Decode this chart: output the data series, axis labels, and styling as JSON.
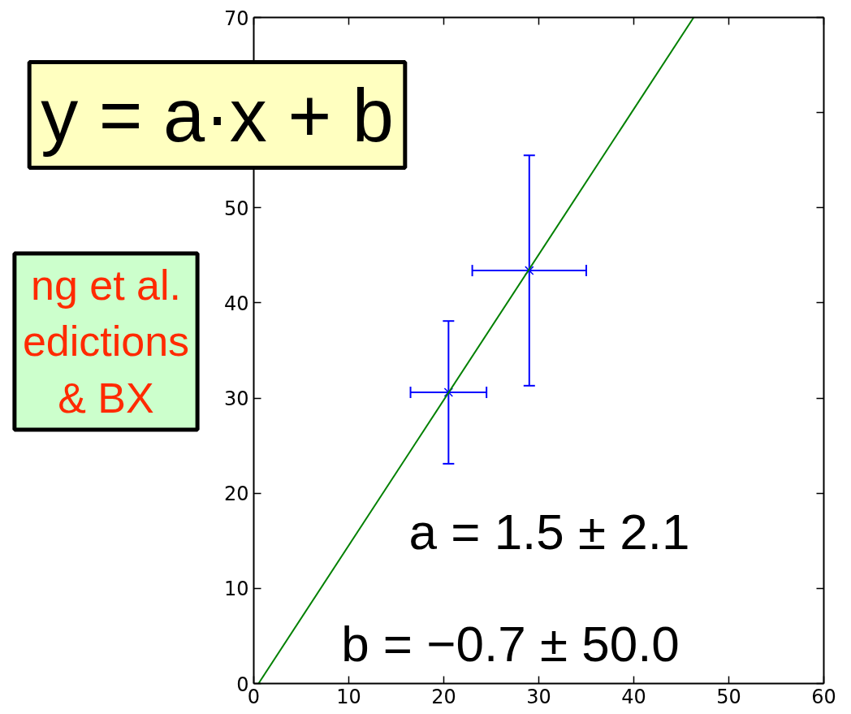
{
  "chart_data": {
    "type": "scatter",
    "series": [
      {
        "color": "#0000ff",
        "marker": "cross",
        "x": [
          20.5,
          29.0
        ],
        "values": [
          30.6,
          43.4
        ],
        "errors": [
          7.5,
          12.1
        ],
        "xerrors": [
          4.0,
          6.0
        ]
      },
      {
        "type": "line",
        "color": "#008000",
        "line_style": "solid",
        "x": [
          0.5,
          46.3
        ],
        "values": [
          0,
          70
        ]
      }
    ],
    "xlim": [
      0,
      60
    ],
    "ylim": [
      0,
      70
    ],
    "xticks": [
      0,
      10,
      20,
      30,
      40,
      50,
      60
    ],
    "yticks": [
      0,
      10,
      20,
      30,
      40,
      50,
      {
        "value": 60,
        "label": null
      },
      70
    ],
    "grid": false,
    "annotations": [
      "y = a·x + b",
      "ng et al.\nedictions\n& BX",
      "a = 1.5 ± 2.1",
      "b = −0.7 ± 50.0"
    ]
  }
}
